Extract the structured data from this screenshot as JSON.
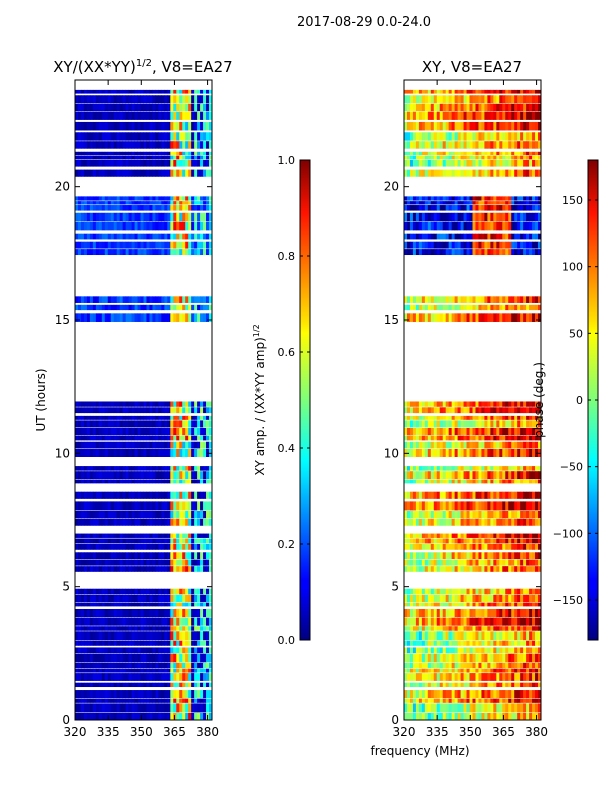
{
  "suptitle": "2017-08-29 0.0-24.0",
  "shared_xlabel": "frequency (MHz)",
  "chart_data": [
    {
      "type": "heatmap",
      "title_main": "XY/(XX*YY)",
      "title_sup": "1/2",
      "title_tail": ", V8=EA27",
      "ylabel": "UT (hours)",
      "xlim": [
        320,
        382
      ],
      "ylim": [
        0,
        24
      ],
      "xticks": [
        "320",
        "335",
        "350",
        "365",
        "380"
      ],
      "xtick_values": [
        320,
        335,
        350,
        365,
        380
      ],
      "yticks": [
        "0",
        "5",
        "10",
        "15",
        "20"
      ],
      "ytick_values": [
        0,
        5,
        10,
        15,
        20
      ],
      "colorbar": {
        "label_main": "XY amp. / (XX*YY amp)",
        "label_sup": "1/2",
        "range": [
          0.0,
          1.0
        ],
        "ticks": [
          "0.0",
          "0.2",
          "0.4",
          "0.6",
          "0.8",
          "1.0"
        ],
        "tick_values": [
          0.0,
          0.2,
          0.4,
          0.6,
          0.8,
          1.0
        ]
      }
    },
    {
      "type": "heatmap",
      "title_main": "XY, V8=EA27",
      "xlim": [
        320,
        382
      ],
      "ylim": [
        0,
        24
      ],
      "xticks": [
        "320",
        "335",
        "350",
        "365",
        "380"
      ],
      "xtick_values": [
        320,
        335,
        350,
        365,
        380
      ],
      "yticks": [
        "0",
        "5",
        "10",
        "15",
        "20"
      ],
      "ytick_values": [
        0,
        5,
        10,
        15,
        20
      ],
      "colorbar": {
        "label_main": "phase (deg.)",
        "range": [
          -180,
          180
        ],
        "ticks": [
          "−150",
          "−100",
          "−50",
          "0",
          "50",
          "100",
          "150"
        ],
        "tick_values": [
          -150,
          -100,
          -50,
          0,
          50,
          100,
          150
        ]
      }
    }
  ]
}
